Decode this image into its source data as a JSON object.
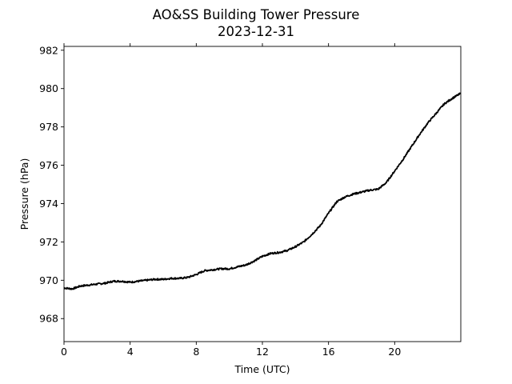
{
  "chart_data": {
    "type": "line",
    "title": "AO&SS Building Tower Pressure",
    "subtitle": "2023-12-31",
    "xlabel": "Time (UTC)",
    "ylabel": "Pressure (hPa)",
    "xlim": [
      0,
      24
    ],
    "ylim": [
      966.8,
      982.2
    ],
    "x_ticks": [
      0,
      4,
      8,
      12,
      16,
      20
    ],
    "x_tick_labels": [
      "0",
      "4",
      "8",
      "12",
      "16",
      "20"
    ],
    "y_ticks": [
      968,
      970,
      972,
      974,
      976,
      978,
      980,
      982
    ],
    "y_tick_labels": [
      "968",
      "970",
      "972",
      "974",
      "976",
      "978",
      "980",
      "982"
    ],
    "grid": false,
    "legend": "none",
    "series": [
      {
        "color": "#000000",
        "x": [
          0,
          0.5,
          1,
          1.5,
          2,
          2.5,
          3,
          3.5,
          4,
          4.5,
          5,
          5.5,
          6,
          6.5,
          7,
          7.5,
          8,
          8.5,
          9,
          9.5,
          10,
          10.5,
          11,
          11.5,
          12,
          12.5,
          13,
          13.5,
          14,
          14.5,
          15,
          15.5,
          16,
          16.5,
          17,
          17.5,
          18,
          18.5,
          19,
          19.5,
          20,
          20.5,
          21,
          21.5,
          22,
          22.5,
          23,
          23.5,
          24
        ],
        "y": [
          969.6,
          969.55,
          969.7,
          969.75,
          969.8,
          969.85,
          969.95,
          969.95,
          969.9,
          969.95,
          970.0,
          970.05,
          970.05,
          970.1,
          970.1,
          970.15,
          970.3,
          970.5,
          970.55,
          970.6,
          970.6,
          970.7,
          970.8,
          971.0,
          971.25,
          971.4,
          971.45,
          971.55,
          971.75,
          972.0,
          972.4,
          972.85,
          973.5,
          974.1,
          974.35,
          974.5,
          974.6,
          974.7,
          974.75,
          975.1,
          975.7,
          976.3,
          976.95,
          977.6,
          978.2,
          978.7,
          979.2,
          979.5,
          979.75
        ]
      }
    ]
  }
}
